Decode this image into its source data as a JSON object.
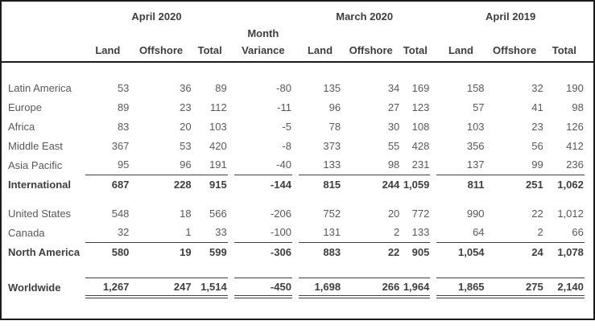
{
  "colors": {
    "background": "#ffffff",
    "border": "#1a1a1a",
    "rule": "#3f3f41",
    "text": "#58595b",
    "text_bold": "#3e3e40"
  },
  "table": {
    "period_headers": [
      "April 2020",
      "March 2020",
      "April 2019"
    ],
    "sub_headers": [
      "Land",
      "Offshore",
      "Total"
    ],
    "variance_header": {
      "line1": "Month",
      "line2": "Variance"
    },
    "rows": [
      {
        "style": "spacer-top"
      },
      {
        "label": "Latin America",
        "style": "normal",
        "values": [
          "53",
          "36",
          "89",
          "-80",
          "135",
          "34",
          "169",
          "158",
          "32",
          "190"
        ]
      },
      {
        "label": "Europe",
        "style": "normal",
        "values": [
          "89",
          "23",
          "112",
          "-11",
          "96",
          "27",
          "123",
          "57",
          "41",
          "98"
        ]
      },
      {
        "label": "Africa",
        "style": "normal",
        "values": [
          "83",
          "20",
          "103",
          "-5",
          "78",
          "30",
          "108",
          "103",
          "23",
          "126"
        ]
      },
      {
        "label": "Middle East",
        "style": "normal",
        "values": [
          "367",
          "53",
          "420",
          "-8",
          "373",
          "55",
          "428",
          "356",
          "56",
          "412"
        ]
      },
      {
        "label": "Asia Pacific",
        "style": "normal",
        "values": [
          "95",
          "96",
          "191",
          "-40",
          "133",
          "98",
          "231",
          "137",
          "99",
          "236"
        ]
      },
      {
        "label": "International",
        "style": "total",
        "values": [
          "687",
          "228",
          "915",
          "-144",
          "815",
          "244",
          "1,059",
          "811",
          "251",
          "1,062"
        ]
      },
      {
        "style": "spacer"
      },
      {
        "label": "United States",
        "style": "normal",
        "values": [
          "548",
          "18",
          "566",
          "-206",
          "752",
          "20",
          "772",
          "990",
          "22",
          "1,012"
        ]
      },
      {
        "label": "Canada",
        "style": "normal",
        "values": [
          "32",
          "1",
          "33",
          "-100",
          "131",
          "2",
          "133",
          "64",
          "2",
          "66"
        ]
      },
      {
        "label": "North America",
        "style": "total",
        "values": [
          "580",
          "19",
          "599",
          "-306",
          "883",
          "22",
          "905",
          "1,054",
          "24",
          "1,078"
        ]
      },
      {
        "style": "spacer-large"
      },
      {
        "label": "Worldwide",
        "style": "grand",
        "values": [
          "1,267",
          "247",
          "1,514",
          "-450",
          "1,698",
          "266",
          "1,964",
          "1,865",
          "275",
          "2,140"
        ]
      },
      {
        "style": "spacer-bottom"
      }
    ]
  }
}
